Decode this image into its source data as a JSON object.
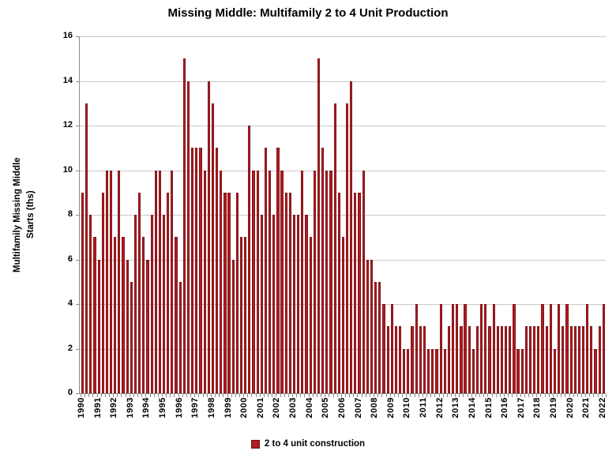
{
  "title": "Missing Middle: Multifamily 2 to 4 Unit Production",
  "y_axis": {
    "title_line1": "Multifamily Missing Middle",
    "title_line2": "Starts (ths)",
    "tick_labels": [
      "0",
      "2",
      "4",
      "6",
      "8",
      "10",
      "12",
      "14",
      "16"
    ]
  },
  "legend": {
    "label": "2 to 4 unit construction"
  },
  "colors": {
    "bar_fill": "#ae1c21",
    "bar_border": "#7c1215",
    "gridline": "#c9c9c9",
    "axis": "#8c8c8c",
    "text": "#000000"
  },
  "chart_data": {
    "type": "bar",
    "title": "Missing Middle: Multifamily 2 to 4 Unit Production",
    "ylabel": "Multifamily Missing Middle Starts (ths)",
    "xlabel": "",
    "ylim": [
      0,
      16
    ],
    "ytick_step": 2,
    "grid": true,
    "legend_position": "bottom",
    "series_name": "2 to 4 unit construction",
    "x_frequency": "quarterly",
    "first_year": 1990,
    "last_point": "2022Q1",
    "values_by_year": [
      {
        "year": 1990,
        "values": [
          9,
          13,
          8,
          7
        ]
      },
      {
        "year": 1991,
        "values": [
          6,
          9,
          10,
          10
        ]
      },
      {
        "year": 1992,
        "values": [
          7,
          10,
          7,
          6
        ]
      },
      {
        "year": 1993,
        "values": [
          5,
          8,
          9,
          7
        ]
      },
      {
        "year": 1994,
        "values": [
          6,
          8,
          10,
          10
        ]
      },
      {
        "year": 1995,
        "values": [
          8,
          9,
          10,
          7
        ]
      },
      {
        "year": 1996,
        "values": [
          5,
          15,
          14,
          11
        ]
      },
      {
        "year": 1997,
        "values": [
          11,
          11,
          10,
          14
        ]
      },
      {
        "year": 1998,
        "values": [
          13,
          11,
          10,
          9
        ]
      },
      {
        "year": 1999,
        "values": [
          9,
          6,
          9,
          7
        ]
      },
      {
        "year": 2000,
        "values": [
          7,
          12,
          10,
          10
        ]
      },
      {
        "year": 2001,
        "values": [
          8,
          11,
          10,
          8
        ]
      },
      {
        "year": 2002,
        "values": [
          11,
          10,
          9,
          9
        ]
      },
      {
        "year": 2003,
        "values": [
          8,
          8,
          10,
          8
        ]
      },
      {
        "year": 2004,
        "values": [
          7,
          10,
          15,
          11
        ]
      },
      {
        "year": 2005,
        "values": [
          10,
          10,
          13,
          9
        ]
      },
      {
        "year": 2006,
        "values": [
          7,
          13,
          14,
          9
        ]
      },
      {
        "year": 2007,
        "values": [
          9,
          10,
          6,
          6
        ]
      },
      {
        "year": 2008,
        "values": [
          5,
          5,
          4,
          3
        ]
      },
      {
        "year": 2009,
        "values": [
          4,
          3,
          3,
          2
        ]
      },
      {
        "year": 2010,
        "values": [
          2,
          3,
          4,
          3
        ]
      },
      {
        "year": 2011,
        "values": [
          3,
          2,
          2,
          2
        ]
      },
      {
        "year": 2012,
        "values": [
          4,
          2,
          3,
          4
        ]
      },
      {
        "year": 2013,
        "values": [
          4,
          3,
          4,
          3
        ]
      },
      {
        "year": 2014,
        "values": [
          2,
          3,
          4,
          4
        ]
      },
      {
        "year": 2015,
        "values": [
          3,
          4,
          3,
          3
        ]
      },
      {
        "year": 2016,
        "values": [
          3,
          3,
          4,
          2
        ]
      },
      {
        "year": 2017,
        "values": [
          2,
          3,
          3,
          3
        ]
      },
      {
        "year": 2018,
        "values": [
          3,
          4,
          3,
          4
        ]
      },
      {
        "year": 2019,
        "values": [
          2,
          4,
          3,
          4
        ]
      },
      {
        "year": 2020,
        "values": [
          3,
          3,
          3,
          3
        ]
      },
      {
        "year": 2021,
        "values": [
          4,
          3,
          2,
          3
        ]
      },
      {
        "year": 2022,
        "values": [
          4
        ]
      }
    ]
  }
}
